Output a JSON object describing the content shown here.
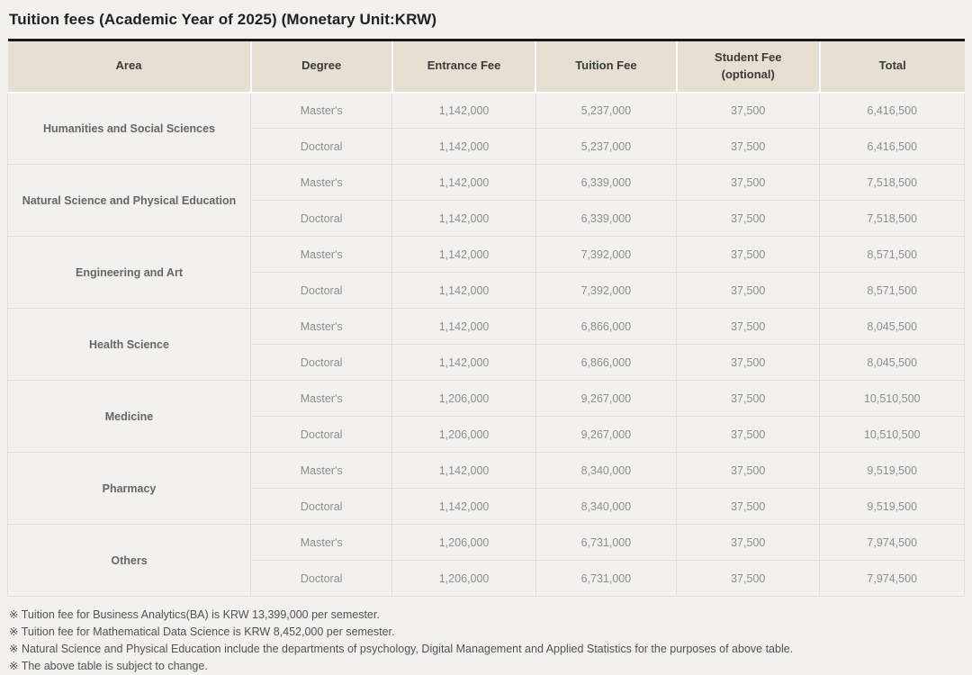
{
  "page": {
    "title": "Tuition fees (Academic Year of 2025) (Monetary Unit:KRW)"
  },
  "table": {
    "columns": [
      {
        "label": "Area"
      },
      {
        "label": "Degree"
      },
      {
        "label": "Entrance Fee"
      },
      {
        "label": "Tuition Fee"
      },
      {
        "label": "Student Fee",
        "sublabel": "(optional)"
      },
      {
        "label": "Total"
      }
    ],
    "groups": [
      {
        "area": "Humanities and Social Sciences",
        "rows": [
          {
            "degree": "Master's",
            "entrance_fee": "1,142,000",
            "tuition_fee": "5,237,000",
            "student_fee": "37,500",
            "total": "6,416,500"
          },
          {
            "degree": "Doctoral",
            "entrance_fee": "1,142,000",
            "tuition_fee": "5,237,000",
            "student_fee": "37,500",
            "total": "6,416,500"
          }
        ]
      },
      {
        "area": "Natural Science and Physical Education",
        "rows": [
          {
            "degree": "Master's",
            "entrance_fee": "1,142,000",
            "tuition_fee": "6,339,000",
            "student_fee": "37,500",
            "total": "7,518,500"
          },
          {
            "degree": "Doctoral",
            "entrance_fee": "1,142,000",
            "tuition_fee": "6,339,000",
            "student_fee": "37,500",
            "total": "7,518,500"
          }
        ]
      },
      {
        "area": "Engineering and Art",
        "rows": [
          {
            "degree": "Master's",
            "entrance_fee": "1,142,000",
            "tuition_fee": "7,392,000",
            "student_fee": "37,500",
            "total": "8,571,500"
          },
          {
            "degree": "Doctoral",
            "entrance_fee": "1,142,000",
            "tuition_fee": "7,392,000",
            "student_fee": "37,500",
            "total": "8,571,500"
          }
        ]
      },
      {
        "area": "Health Science",
        "rows": [
          {
            "degree": "Master's",
            "entrance_fee": "1,142,000",
            "tuition_fee": "6,866,000",
            "student_fee": "37,500",
            "total": "8,045,500"
          },
          {
            "degree": "Doctoral",
            "entrance_fee": "1,142,000",
            "tuition_fee": "6,866,000",
            "student_fee": "37,500",
            "total": "8,045,500"
          }
        ]
      },
      {
        "area": "Medicine",
        "rows": [
          {
            "degree": "Master's",
            "entrance_fee": "1,206,000",
            "tuition_fee": "9,267,000",
            "student_fee": "37,500",
            "total": "10,510,500"
          },
          {
            "degree": "Doctoral",
            "entrance_fee": "1,206,000",
            "tuition_fee": "9,267,000",
            "student_fee": "37,500",
            "total": "10,510,500"
          }
        ]
      },
      {
        "area": "Pharmacy",
        "rows": [
          {
            "degree": "Master's",
            "entrance_fee": "1,142,000",
            "tuition_fee": "8,340,000",
            "student_fee": "37,500",
            "total": "9,519,500"
          },
          {
            "degree": "Doctoral",
            "entrance_fee": "1,142,000",
            "tuition_fee": "8,340,000",
            "student_fee": "37,500",
            "total": "9,519,500"
          }
        ]
      },
      {
        "area": "Others",
        "rows": [
          {
            "degree": "Master's",
            "entrance_fee": "1,206,000",
            "tuition_fee": "6,731,000",
            "student_fee": "37,500",
            "total": "7,974,500"
          },
          {
            "degree": "Doctoral",
            "entrance_fee": "1,206,000",
            "tuition_fee": "6,731,000",
            "student_fee": "37,500",
            "total": "7,974,500"
          }
        ]
      }
    ]
  },
  "footnotes": [
    "※ Tuition fee for Business Analytics(BA) is KRW 13,399,000 per semester.",
    "※ Tuition fee for Mathematical Data Science is KRW 8,452,000 per semester.",
    "※ Natural Science and Physical Education include the departments of psychology, Digital Management and Applied Statistics for the purposes of above table.",
    "※ The above table is subject to change.",
    ""
  ]
}
